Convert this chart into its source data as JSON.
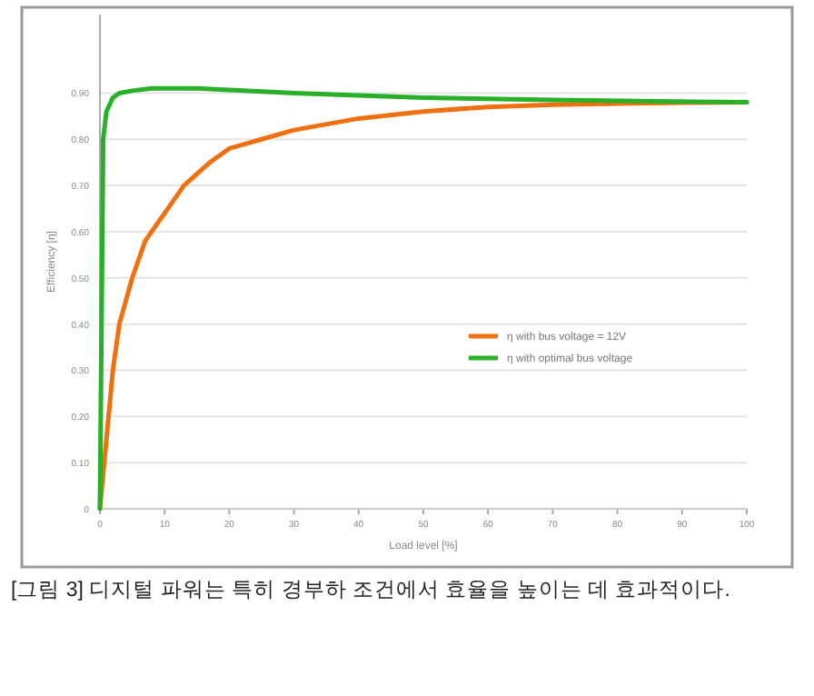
{
  "chart_data": {
    "type": "line",
    "xlabel": "Load level [%]",
    "ylabel": "Efficiency [η]",
    "annotations": [
      "[그림 3] 디지털 파워는 특히 경부하 조건에서 효율을 높이는 데 효과적이다."
    ],
    "series": [
      {
        "name": "η with bus voltage = 12V",
        "color": "#f07010",
        "x": [
          0,
          1,
          2,
          3,
          5,
          7,
          10,
          13,
          17,
          20,
          25,
          30,
          40,
          50,
          60,
          70,
          80,
          90,
          100
        ],
        "values": [
          0,
          0.15,
          0.3,
          0.4,
          0.5,
          0.58,
          0.64,
          0.7,
          0.75,
          0.78,
          0.8,
          0.82,
          0.845,
          0.86,
          0.87,
          0.875,
          0.877,
          0.879,
          0.88
        ]
      },
      {
        "name": "η with optimal bus voltage",
        "color": "#28b028",
        "x": [
          0,
          0.5,
          1,
          2,
          3,
          5,
          8,
          15,
          30,
          50,
          70,
          100
        ],
        "values": [
          0,
          0.8,
          0.86,
          0.89,
          0.9,
          0.905,
          0.91,
          0.91,
          0.9,
          0.89,
          0.885,
          0.88
        ]
      }
    ],
    "xlim": [
      0,
      100
    ],
    "xticks": [
      0,
      10,
      20,
      30,
      40,
      50,
      60,
      70,
      80,
      90,
      100
    ],
    "ylim": [
      0,
      1.07
    ],
    "yticks": [
      0,
      {
        "value": 0.1,
        "label": "0.10"
      },
      {
        "value": 0.2,
        "label": "0.20"
      },
      {
        "value": 0.3,
        "label": "0.30"
      },
      {
        "value": 0.4,
        "label": "0.40"
      },
      {
        "value": 0.5,
        "label": "0.50"
      },
      {
        "value": 0.6,
        "label": "0.60"
      },
      {
        "value": 0.7,
        "label": "0.70"
      },
      {
        "value": 0.8,
        "label": "0.80"
      },
      {
        "value": 0.9,
        "label": "0.90"
      }
    ],
    "grid": "y",
    "legend": "center right",
    "marker": "none",
    "line_style": "solid"
  }
}
